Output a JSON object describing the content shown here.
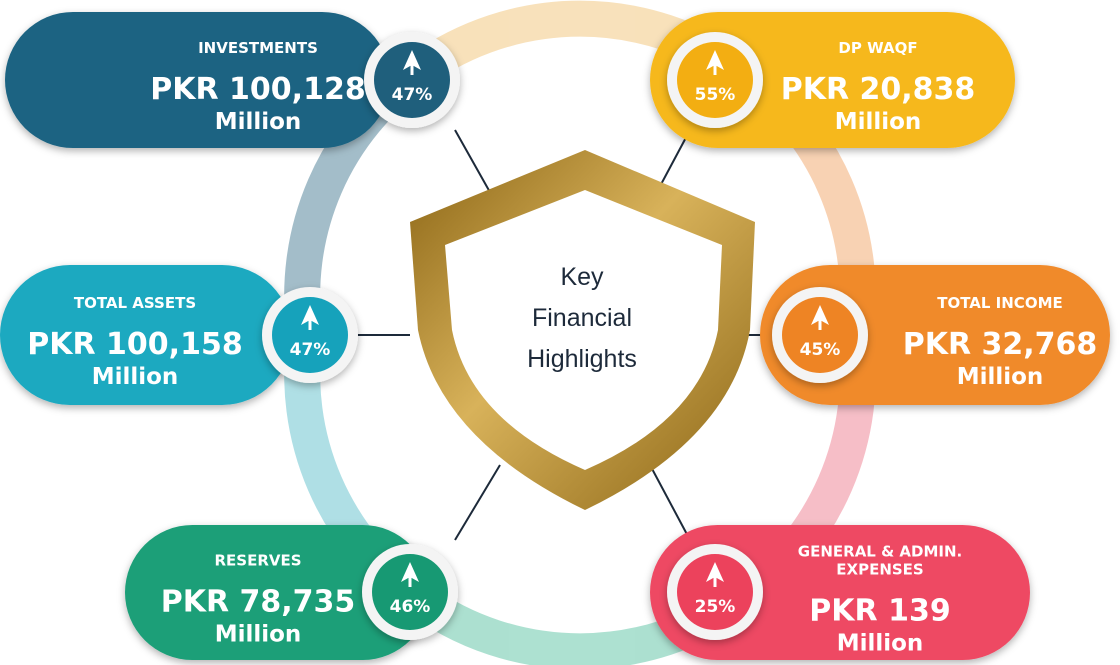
{
  "center": {
    "title_lines": [
      "Key",
      "Financial",
      "Highlights"
    ]
  },
  "cards": [
    {
      "label_lines": [
        "INVESTMENTS"
      ],
      "value": "PKR 100,128",
      "unit": "Million",
      "change": "47%"
    },
    {
      "label_lines": [
        "DP WAQF"
      ],
      "value": "PKR 20,838",
      "unit": "Million",
      "change": "55%"
    },
    {
      "label_lines": [
        "TOTAL ASSETS"
      ],
      "value": "PKR 100,158",
      "unit": "Million",
      "change": "47%"
    },
    {
      "label_lines": [
        "TOTAL INCOME"
      ],
      "value": "PKR 32,768",
      "unit": "Million",
      "change": "45%"
    },
    {
      "label_lines": [
        "RESERVES"
      ],
      "value": "PKR 78,735",
      "unit": "Million",
      "change": "46%"
    },
    {
      "label_lines": [
        "GENERAL & ADMIN.",
        "EXPENSES"
      ],
      "value": "PKR 139",
      "unit": "Million",
      "change": "25%"
    }
  ]
}
